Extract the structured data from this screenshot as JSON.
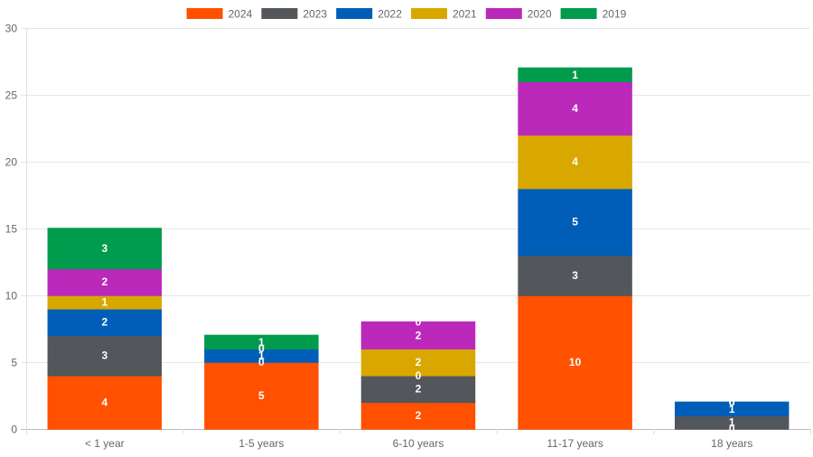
{
  "chart_data": {
    "type": "bar",
    "stacked": true,
    "categories": [
      "< 1 year",
      "1-5 years",
      "6-10 years",
      "11-17 years",
      "18 years"
    ],
    "series": [
      {
        "name": "2024",
        "color": "#ff5100",
        "values": [
          4,
          5,
          2,
          10,
          0
        ]
      },
      {
        "name": "2023",
        "color": "#53565a",
        "values": [
          3,
          0,
          2,
          3,
          1
        ]
      },
      {
        "name": "2022",
        "color": "#005eb8",
        "values": [
          2,
          1,
          0,
          5,
          1
        ]
      },
      {
        "name": "2021",
        "color": "#d9a800",
        "values": [
          1,
          0,
          2,
          4,
          0
        ]
      },
      {
        "name": "2020",
        "color": "#bb29bb",
        "values": [
          2,
          0,
          2,
          4,
          0
        ]
      },
      {
        "name": "2019",
        "color": "#009b4d",
        "values": [
          3,
          1,
          0,
          1,
          0
        ]
      }
    ],
    "ylim": [
      0,
      30
    ],
    "yticks": [
      0,
      5,
      10,
      15,
      20,
      25,
      30
    ],
    "grid": true,
    "legend_position": "top"
  }
}
